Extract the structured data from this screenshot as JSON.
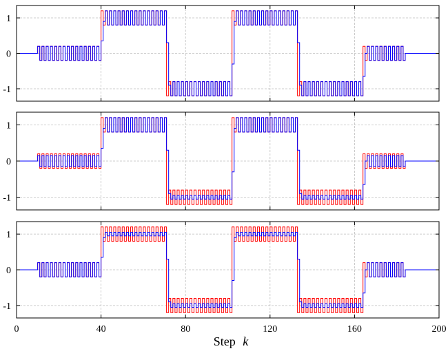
{
  "chart_data": [
    {
      "type": "line",
      "step": true,
      "panel": 1,
      "xlim": [
        0,
        200
      ],
      "ylim": [
        -1.35,
        1.35
      ],
      "grid": true,
      "x_ticks": [
        0,
        40,
        80,
        120,
        160,
        200
      ],
      "y_ticks": [
        -1,
        0,
        1
      ],
      "y_tick_labels": [
        "-1",
        "0",
        "1"
      ],
      "reference_levels": {
        "segments_x": [
          [
            0,
            10
          ],
          [
            10,
            40
          ],
          [
            40,
            71
          ],
          [
            71,
            102
          ],
          [
            102,
            133
          ],
          [
            133,
            164
          ],
          [
            164,
            184
          ],
          [
            184,
            200
          ]
        ],
        "segments_level": [
          0,
          0,
          1,
          -1,
          1,
          -1,
          0,
          0
        ]
      },
      "series": [
        {
          "color": "#ff0000",
          "description": "alternates level ± 0.2 each step while active",
          "oscillation_amplitude": 0.2,
          "active_range": [
            10,
            164
          ]
        },
        {
          "color": "#0000ff",
          "oscillation_amplitude": 0.2,
          "follows_red_with_lag": true,
          "active_range": [
            10,
            184
          ]
        }
      ]
    },
    {
      "type": "line",
      "step": true,
      "panel": 2,
      "xlim": [
        0,
        200
      ],
      "ylim": [
        -1.35,
        1.35
      ],
      "grid": true,
      "x_ticks": [
        0,
        40,
        80,
        120,
        160,
        200
      ],
      "y_ticks": [
        -1,
        0,
        1
      ],
      "y_tick_labels": [
        "-1",
        "0",
        "1"
      ],
      "series": [
        {
          "color": "#ff0000",
          "oscillation_amplitude": 0.2
        },
        {
          "color": "#0000ff",
          "oscillation_amplitude_high_level": 0.2,
          "oscillation_amplitude_low_level": 0.05
        }
      ]
    },
    {
      "type": "line",
      "step": true,
      "panel": 3,
      "xlim": [
        0,
        200
      ],
      "ylim": [
        -1.35,
        1.35
      ],
      "grid": true,
      "x_ticks": [
        0,
        40,
        80,
        120,
        160,
        200
      ],
      "x_tick_labels": [
        "0",
        "40",
        "80",
        "120",
        "160",
        "200"
      ],
      "y_ticks": [
        -1,
        0,
        1
      ],
      "y_tick_labels": [
        "-1",
        "0",
        "1"
      ],
      "xlabel_text": "Step",
      "xlabel_var": "k",
      "series": [
        {
          "color": "#ff0000",
          "oscillation_amplitude": 0.2
        },
        {
          "color": "#0000ff",
          "oscillation_amplitude_high_level": 0.05,
          "oscillation_amplitude_low_level": 0.05
        }
      ]
    }
  ],
  "colors": {
    "red_series": "#ff0000",
    "blue_series": "#0000ff",
    "grid": "#bdbdbd"
  }
}
